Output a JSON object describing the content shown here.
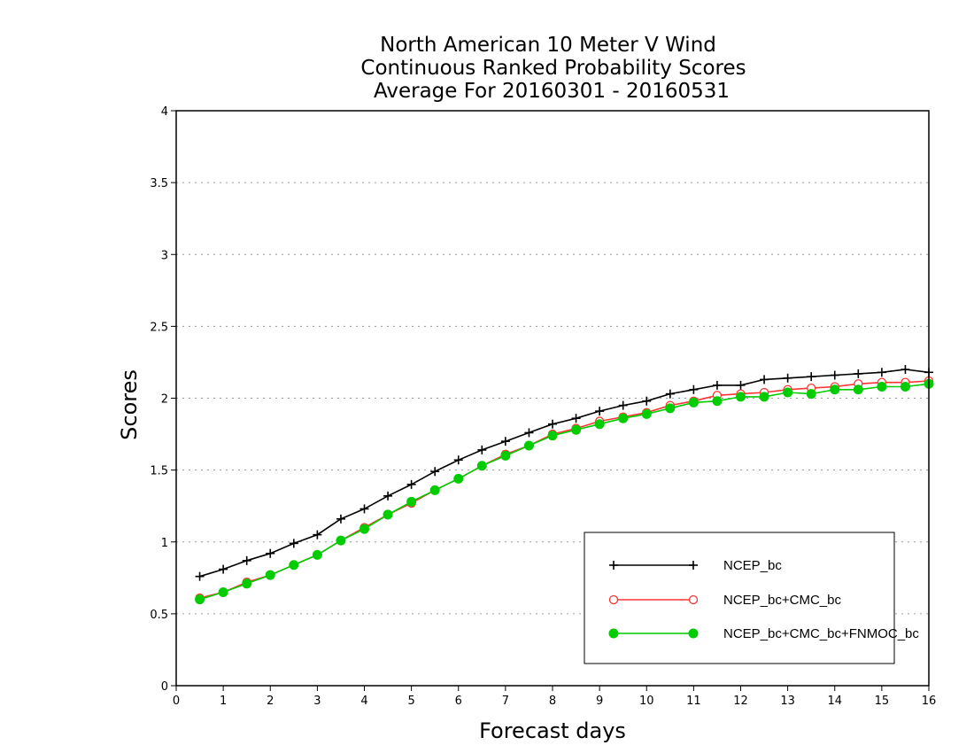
{
  "chart_data": {
    "type": "line",
    "title_lines": [
      "North American 10 Meter V Wind",
      "Continuous Ranked Probability Scores",
      "Average For 20160301 - 20160531"
    ],
    "xlabel": "Forecast days",
    "ylabel": "Scores",
    "xlim": [
      0,
      16
    ],
    "ylim": [
      0,
      4
    ],
    "xticks": [
      "0",
      "1",
      "2",
      "3",
      "4",
      "5",
      "6",
      "7",
      "8",
      "9",
      "10",
      "11",
      "12",
      "13",
      "14",
      "15",
      "16"
    ],
    "yticks": [
      "0",
      "0.5",
      "1",
      "1.5",
      "2",
      "2.5",
      "3",
      "3.5",
      "4"
    ],
    "grid": "horizontal dotted",
    "legend_position": "bottom-right",
    "x": [
      0.5,
      1,
      1.5,
      2,
      2.5,
      3,
      3.5,
      4,
      4.5,
      5,
      5.5,
      6,
      6.5,
      7,
      7.5,
      8,
      8.5,
      9,
      9.5,
      10,
      10.5,
      11,
      11.5,
      12,
      12.5,
      13,
      13.5,
      14,
      14.5,
      15,
      15.5,
      16
    ],
    "series": [
      {
        "name": "NCEP_bc",
        "color": "#000000",
        "marker": "plus",
        "values": [
          0.76,
          0.81,
          0.87,
          0.92,
          0.99,
          1.05,
          1.16,
          1.23,
          1.32,
          1.4,
          1.49,
          1.57,
          1.64,
          1.7,
          1.76,
          1.82,
          1.86,
          1.91,
          1.95,
          1.98,
          2.03,
          2.06,
          2.09,
          2.09,
          2.13,
          2.14,
          2.15,
          2.16,
          2.17,
          2.18,
          2.2,
          2.18
        ]
      },
      {
        "name": "NCEP_bc+CMC_bc",
        "color": "#ff3333",
        "marker": "open-circle",
        "values": [
          0.61,
          0.65,
          0.72,
          0.77,
          0.84,
          0.91,
          1.01,
          1.1,
          1.19,
          1.27,
          1.36,
          1.44,
          1.53,
          1.61,
          1.67,
          1.75,
          1.79,
          1.84,
          1.87,
          1.9,
          1.95,
          1.98,
          2.02,
          2.03,
          2.04,
          2.06,
          2.07,
          2.08,
          2.1,
          2.11,
          2.11,
          2.12
        ]
      },
      {
        "name": "NCEP_bc+CMC_bc+FNMOC_bc",
        "color": "#00cc00",
        "marker": "filled-circle",
        "values": [
          0.6,
          0.65,
          0.71,
          0.77,
          0.84,
          0.91,
          1.01,
          1.09,
          1.19,
          1.28,
          1.36,
          1.44,
          1.53,
          1.6,
          1.67,
          1.74,
          1.78,
          1.82,
          1.86,
          1.89,
          1.93,
          1.97,
          1.98,
          2.01,
          2.01,
          2.04,
          2.03,
          2.06,
          2.06,
          2.08,
          2.08,
          2.1
        ]
      }
    ]
  }
}
